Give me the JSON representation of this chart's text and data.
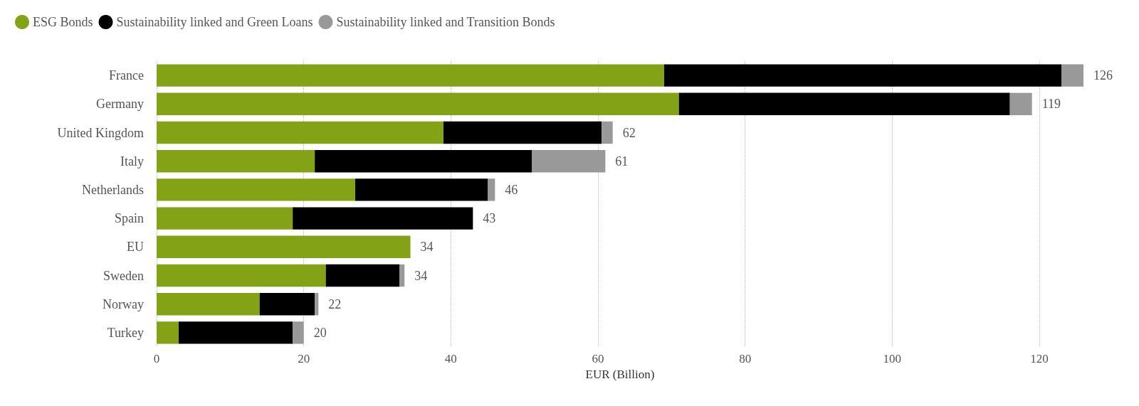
{
  "chart_data": {
    "type": "bar",
    "orientation": "horizontal",
    "stacked": true,
    "categories": [
      "France",
      "Germany",
      "United Kingdom",
      "Italy",
      "Netherlands",
      "Spain",
      "EU",
      "Sweden",
      "Norway",
      "Turkey"
    ],
    "series": [
      {
        "name": "ESG Bonds",
        "color": "#84a215",
        "values": [
          69,
          71,
          39,
          21.5,
          27,
          18.5,
          34.5,
          23,
          14,
          3
        ]
      },
      {
        "name": "Sustainability linked and Green Loans",
        "color": "#000000",
        "values": [
          54,
          45,
          21.5,
          29.5,
          18,
          24.5,
          0,
          10,
          7.5,
          15.5
        ]
      },
      {
        "name": "Sustainability linked and Transition Bonds",
        "color": "#999999",
        "values": [
          3,
          3,
          1.5,
          10,
          1,
          0,
          0,
          0.7,
          0.5,
          1.5
        ]
      }
    ],
    "totals": [
      "126",
      "119",
      "62",
      "61",
      "46",
      "43",
      "34",
      "34",
      "22",
      "20"
    ],
    "xlabel": "EUR (Billion)",
    "xlim": [
      0,
      126
    ],
    "xticks": [
      0,
      20,
      40,
      60,
      80,
      100,
      120
    ],
    "grid": "x",
    "legend": "top left"
  }
}
